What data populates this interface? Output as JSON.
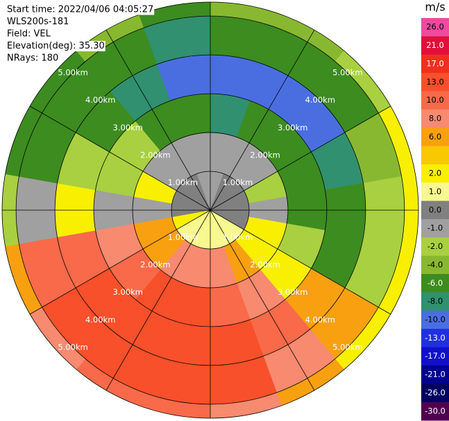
{
  "chart_data": {
    "type": "ppi",
    "header": [
      "Start time: 2022/04/06 04:05:27",
      "WLS200s-181",
      "Field: VEL",
      "Elevation(deg): 35.30",
      "NRays: 180"
    ],
    "rlim": [
      0,
      5.36
    ],
    "rticks": [
      {
        "value": 1,
        "label": "1.00km"
      },
      {
        "value": 2,
        "label": "2.00km"
      },
      {
        "value": 3,
        "label": "3.00km"
      },
      {
        "value": 4,
        "label": "4.00km"
      },
      {
        "value": 5,
        "label": "5.00km"
      }
    ],
    "spokes": [
      0,
      30,
      60,
      90,
      120,
      150,
      180,
      210,
      240,
      270,
      300,
      330
    ],
    "azimuth_edges": [
      0,
      20,
      40,
      60,
      80,
      100,
      120,
      140,
      160,
      180,
      200,
      220,
      240,
      260,
      280,
      300,
      320,
      340,
      360
    ],
    "range_edges": [
      0,
      1,
      2,
      3,
      4,
      5,
      5.36
    ],
    "values": [
      [
        -1,
        -1,
        -8,
        -10,
        -6,
        -4
      ],
      [
        0,
        -1,
        -6,
        -10,
        -6,
        -4
      ],
      [
        0,
        -1,
        -6,
        -10,
        -6,
        -2
      ],
      [
        0,
        -2,
        -6,
        -8,
        -4,
        2
      ],
      [
        0,
        -1,
        -6,
        -6,
        -2,
        2
      ],
      [
        0,
        2,
        -2,
        -6,
        -2,
        2
      ],
      [
        1,
        2,
        2,
        6,
        6,
        2
      ],
      [
        1,
        6,
        8,
        10,
        8,
        6
      ],
      [
        1,
        8,
        10,
        13,
        13,
        8
      ],
      [
        1,
        8,
        13,
        13,
        13,
        10
      ],
      [
        1,
        8,
        13,
        13,
        13,
        10
      ],
      [
        1,
        6,
        10,
        13,
        13,
        8
      ],
      [
        2,
        6,
        8,
        10,
        10,
        6
      ],
      [
        0,
        -1,
        -1,
        2,
        -1,
        -2
      ],
      [
        0,
        2,
        -2,
        -2,
        -6,
        -6
      ],
      [
        0,
        -1,
        -2,
        -6,
        -6,
        -6
      ],
      [
        0,
        -1,
        -6,
        -8,
        -6,
        -4
      ],
      [
        -1,
        -1,
        -6,
        -10,
        -8,
        -6
      ]
    ],
    "colorbar": {
      "title": "m/s",
      "levels": [
        26,
        21,
        17,
        13,
        10,
        8,
        6,
        null,
        2,
        1,
        0,
        -1,
        -2,
        -4,
        -6,
        -8,
        -10,
        -13,
        -17,
        -21,
        -26,
        -30
      ],
      "labels": [
        "26.0",
        "21.0",
        "17.0",
        "13.0",
        "10.0",
        "8.0",
        "6.0",
        null,
        "2.0",
        "1.0",
        "0.0",
        "-1.0",
        "-2.0",
        "-4.0",
        "-6.0",
        "-8.0",
        "-10.0",
        "-13.0",
        "-17.0",
        "-21.0",
        "-26.0",
        "-30.0"
      ],
      "colors": [
        "#ee4a9e",
        "#e0103a",
        "#f0301e",
        "#f8502a",
        "#f86a4a",
        "#f88a70",
        "#f8a010",
        "#f8c800",
        "#f8f000",
        "#f8f890",
        "#808080",
        "#a0a0a0",
        "#a8d040",
        "#88b830",
        "#3c8c20",
        "#309070",
        "#4a6ee0",
        "#2030e0",
        "#1010c8",
        "#000090",
        "#000060",
        "#500050"
      ]
    }
  }
}
